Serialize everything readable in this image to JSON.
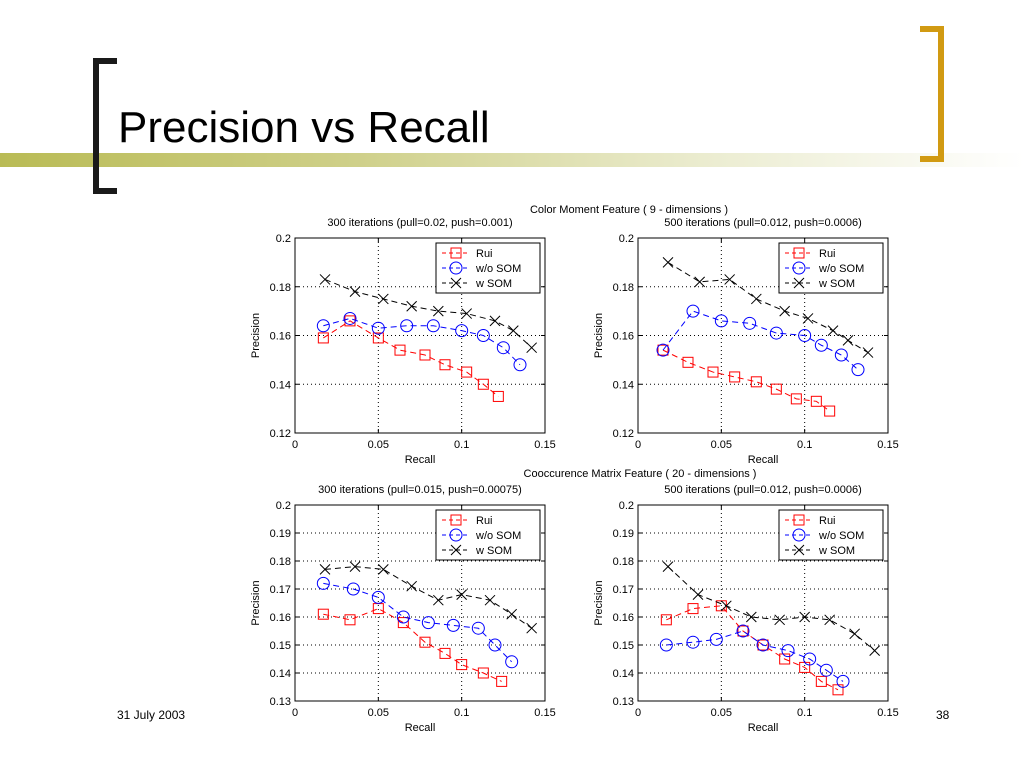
{
  "slide": {
    "title": "Precision vs Recall",
    "footer_date": "31 July 2003",
    "page_number": "38"
  },
  "groups": [
    {
      "title": "Color Moment Feature ( 9 - dimensions )"
    },
    {
      "title": "Cooccurence Matrix Feature ( 20 - dimensions )"
    }
  ],
  "chart_data": [
    {
      "type": "line",
      "title": "300 iterations (pull=0.02, push=0.001)",
      "xlabel": "Recall",
      "ylabel": "Precision",
      "xlim": [
        0,
        0.15
      ],
      "ylim": [
        0.12,
        0.2
      ],
      "xticks": [
        0,
        0.05,
        0.1,
        0.15
      ],
      "yticks": [
        0.12,
        0.14,
        0.16,
        0.18,
        0.2
      ],
      "grid": true,
      "legend": "top-right",
      "series": [
        {
          "name": "Rui",
          "marker": "square",
          "color": "#ff0000",
          "x": [
            0.017,
            0.033,
            0.05,
            0.063,
            0.078,
            0.09,
            0.103,
            0.113,
            0.122
          ],
          "y": [
            0.159,
            0.166,
            0.159,
            0.154,
            0.152,
            0.148,
            0.145,
            0.14,
            0.135
          ]
        },
        {
          "name": "w/o SOM",
          "marker": "circle",
          "color": "#0000ff",
          "x": [
            0.017,
            0.033,
            0.05,
            0.067,
            0.083,
            0.1,
            0.113,
            0.125,
            0.135
          ],
          "y": [
            0.164,
            0.167,
            0.163,
            0.164,
            0.164,
            0.162,
            0.16,
            0.155,
            0.148
          ]
        },
        {
          "name": "w SOM",
          "marker": "x",
          "color": "#000000",
          "x": [
            0.018,
            0.036,
            0.053,
            0.07,
            0.086,
            0.103,
            0.12,
            0.131,
            0.142
          ],
          "y": [
            0.183,
            0.178,
            0.175,
            0.172,
            0.17,
            0.169,
            0.166,
            0.162,
            0.155
          ]
        }
      ]
    },
    {
      "type": "line",
      "title": "500 iterations (pull=0.012, push=0.0006)",
      "xlabel": "Recall",
      "ylabel": "Precision",
      "xlim": [
        0,
        0.15
      ],
      "ylim": [
        0.12,
        0.2
      ],
      "xticks": [
        0,
        0.05,
        0.1,
        0.15
      ],
      "yticks": [
        0.12,
        0.14,
        0.16,
        0.18,
        0.2
      ],
      "grid": true,
      "legend": "top-right",
      "series": [
        {
          "name": "Rui",
          "marker": "square",
          "color": "#ff0000",
          "x": [
            0.015,
            0.03,
            0.045,
            0.058,
            0.071,
            0.083,
            0.095,
            0.107,
            0.115
          ],
          "y": [
            0.154,
            0.149,
            0.145,
            0.143,
            0.141,
            0.138,
            0.134,
            0.133,
            0.129
          ]
        },
        {
          "name": "w/o SOM",
          "marker": "circle",
          "color": "#0000ff",
          "x": [
            0.015,
            0.033,
            0.05,
            0.067,
            0.083,
            0.1,
            0.11,
            0.122,
            0.132
          ],
          "y": [
            0.154,
            0.17,
            0.166,
            0.165,
            0.161,
            0.16,
            0.156,
            0.152,
            0.146
          ]
        },
        {
          "name": "w SOM",
          "marker": "x",
          "color": "#000000",
          "x": [
            0.018,
            0.037,
            0.055,
            0.071,
            0.088,
            0.102,
            0.117,
            0.126,
            0.138
          ],
          "y": [
            0.19,
            0.182,
            0.183,
            0.175,
            0.17,
            0.167,
            0.162,
            0.158,
            0.153
          ]
        }
      ]
    },
    {
      "type": "line",
      "title": "300 iterations (pull=0.015, push=0.00075)",
      "xlabel": "Recall",
      "ylabel": "Precision",
      "xlim": [
        0,
        0.15
      ],
      "ylim": [
        0.13,
        0.2
      ],
      "xticks": [
        0,
        0.05,
        0.1,
        0.15
      ],
      "yticks": [
        0.13,
        0.14,
        0.15,
        0.16,
        0.17,
        0.18,
        0.19,
        0.2
      ],
      "grid": true,
      "legend": "top-right",
      "series": [
        {
          "name": "Rui",
          "marker": "square",
          "color": "#ff0000",
          "x": [
            0.017,
            0.033,
            0.05,
            0.065,
            0.078,
            0.09,
            0.1,
            0.113,
            0.124
          ],
          "y": [
            0.161,
            0.159,
            0.163,
            0.158,
            0.151,
            0.147,
            0.143,
            0.14,
            0.137
          ]
        },
        {
          "name": "w/o SOM",
          "marker": "circle",
          "color": "#0000ff",
          "x": [
            0.017,
            0.035,
            0.05,
            0.065,
            0.08,
            0.095,
            0.11,
            0.12,
            0.13
          ],
          "y": [
            0.172,
            0.17,
            0.167,
            0.16,
            0.158,
            0.157,
            0.156,
            0.15,
            0.144
          ]
        },
        {
          "name": "w SOM",
          "marker": "x",
          "color": "#000000",
          "x": [
            0.018,
            0.036,
            0.053,
            0.07,
            0.086,
            0.1,
            0.117,
            0.13,
            0.142
          ],
          "y": [
            0.177,
            0.178,
            0.177,
            0.171,
            0.166,
            0.168,
            0.166,
            0.161,
            0.156
          ]
        }
      ]
    },
    {
      "type": "line",
      "title": "500 iterations (pull=0.012, push=0.0006)",
      "xlabel": "Recall",
      "ylabel": "Precision",
      "xlim": [
        0,
        0.15
      ],
      "ylim": [
        0.13,
        0.2
      ],
      "xticks": [
        0,
        0.05,
        0.1,
        0.15
      ],
      "yticks": [
        0.13,
        0.14,
        0.15,
        0.16,
        0.17,
        0.18,
        0.19,
        0.2
      ],
      "grid": true,
      "legend": "top-right",
      "series": [
        {
          "name": "Rui",
          "marker": "square",
          "color": "#ff0000",
          "x": [
            0.017,
            0.033,
            0.05,
            0.063,
            0.075,
            0.088,
            0.1,
            0.11,
            0.12
          ],
          "y": [
            0.159,
            0.163,
            0.164,
            0.155,
            0.15,
            0.145,
            0.142,
            0.137,
            0.134
          ]
        },
        {
          "name": "w/o SOM",
          "marker": "circle",
          "color": "#0000ff",
          "x": [
            0.017,
            0.033,
            0.047,
            0.063,
            0.075,
            0.09,
            0.103,
            0.113,
            0.123
          ],
          "y": [
            0.15,
            0.151,
            0.152,
            0.155,
            0.15,
            0.148,
            0.145,
            0.141,
            0.137
          ]
        },
        {
          "name": "w SOM",
          "marker": "x",
          "color": "#000000",
          "x": [
            0.018,
            0.036,
            0.053,
            0.068,
            0.085,
            0.1,
            0.115,
            0.13,
            0.142
          ],
          "y": [
            0.178,
            0.168,
            0.164,
            0.16,
            0.159,
            0.16,
            0.159,
            0.154,
            0.148
          ]
        }
      ]
    }
  ]
}
